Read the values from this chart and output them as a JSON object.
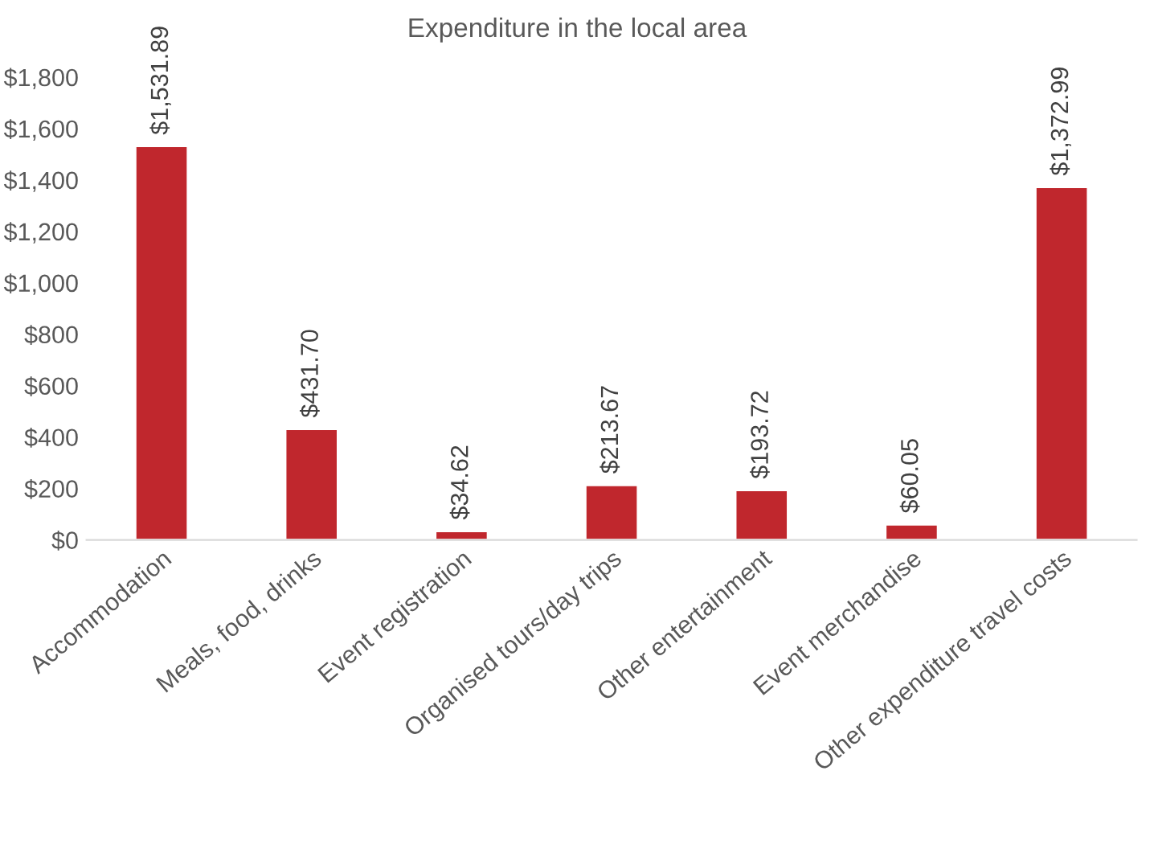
{
  "chart_data": {
    "type": "bar",
    "title": "Expenditure in the local area",
    "categories": [
      "Accommodation",
      "Meals, food, drinks",
      "Event registration",
      "Organised tours/day trips",
      "Other entertainment",
      "Event merchandise",
      "Other expenditure travel costs"
    ],
    "values": [
      1531.89,
      431.7,
      34.62,
      213.67,
      193.72,
      60.05,
      1372.99
    ],
    "value_labels": [
      "$1,531.89",
      "$431.70",
      "$34.62",
      "$213.67",
      "$193.72",
      "$60.05",
      "$1,372.99"
    ],
    "color": "#c0272d",
    "ylim": [
      0,
      1800
    ],
    "yticks": [
      {
        "value": 0,
        "label": "$0"
      },
      {
        "value": 200,
        "label": "$200"
      },
      {
        "value": 400,
        "label": "$400"
      },
      {
        "value": 600,
        "label": "$600"
      },
      {
        "value": 800,
        "label": "$800"
      },
      {
        "value": 1000,
        "label": "$1,000"
      },
      {
        "value": 1200,
        "label": "$1,200"
      },
      {
        "value": 1400,
        "label": "$1,400"
      },
      {
        "value": 1600,
        "label": "$1,600"
      },
      {
        "value": 1800,
        "label": "$1,800"
      }
    ],
    "grid": false,
    "legend": false
  }
}
